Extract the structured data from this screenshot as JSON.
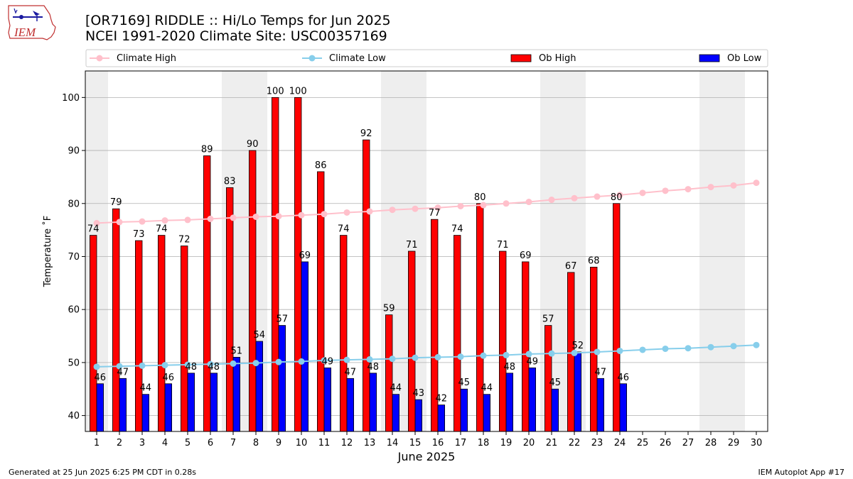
{
  "title_line1": "[OR7169] RIDDLE :: Hi/Lo Temps for Jun 2025",
  "title_line2": "NCEI 1991-2020 Climate Site: USC00357169",
  "logo_text": "IEM",
  "footer_left": "Generated at 25 Jun 2025 6:25 PM CDT in 0.28s",
  "footer_right": "IEM Autoplot App #17",
  "colors": {
    "climate_high": "#ffc0cb",
    "climate_low": "#87ceeb",
    "ob_high": "#ff0000",
    "ob_low": "#0000ff",
    "weekend_shade": "#eeeeee",
    "grid": "#b0b0b0"
  },
  "chart_data": {
    "type": "bar",
    "xlabel": "June 2025",
    "ylabel": "Temperature ˚F",
    "xlim": [
      0.5,
      30.5
    ],
    "ylim": [
      37,
      105
    ],
    "yticks": [
      40,
      50,
      60,
      70,
      80,
      90,
      100
    ],
    "grid": "horizontal",
    "legend_placement": "top",
    "days": [
      1,
      2,
      3,
      4,
      5,
      6,
      7,
      8,
      9,
      10,
      11,
      12,
      13,
      14,
      15,
      16,
      17,
      18,
      19,
      20,
      21,
      22,
      23,
      24,
      25,
      26,
      27,
      28,
      29,
      30
    ],
    "weekend_days": [
      1,
      7,
      8,
      14,
      15,
      21,
      22,
      28,
      29
    ],
    "series": [
      {
        "name": "Climate High",
        "kind": "line",
        "values": [
          76.3,
          76.5,
          76.6,
          76.8,
          76.9,
          77.1,
          77.3,
          77.5,
          77.6,
          77.8,
          78.0,
          78.3,
          78.5,
          78.8,
          79.0,
          79.2,
          79.5,
          79.7,
          80.0,
          80.3,
          80.7,
          81.0,
          81.3,
          81.6,
          82.0,
          82.4,
          82.7,
          83.1,
          83.4,
          83.9
        ]
      },
      {
        "name": "Climate Low",
        "kind": "line",
        "values": [
          49.2,
          49.3,
          49.4,
          49.5,
          49.6,
          49.7,
          49.8,
          49.9,
          50.1,
          50.2,
          50.4,
          50.5,
          50.6,
          50.7,
          50.9,
          51.0,
          51.1,
          51.3,
          51.4,
          51.6,
          51.7,
          51.8,
          52.0,
          52.2,
          52.4,
          52.6,
          52.7,
          52.9,
          53.1,
          53.3
        ]
      },
      {
        "name": "Ob High",
        "kind": "bar",
        "values": [
          74,
          79,
          73,
          74,
          72,
          89,
          83,
          90,
          100,
          100,
          86,
          74,
          92,
          59,
          71,
          77,
          74,
          80,
          71,
          69,
          57,
          67,
          68,
          80
        ]
      },
      {
        "name": "Ob Low",
        "kind": "bar",
        "values": [
          46,
          47,
          44,
          46,
          48,
          48,
          51,
          54,
          57,
          69,
          49,
          47,
          48,
          44,
          43,
          42,
          45,
          44,
          48,
          49,
          45,
          52,
          47,
          46
        ]
      }
    ]
  }
}
